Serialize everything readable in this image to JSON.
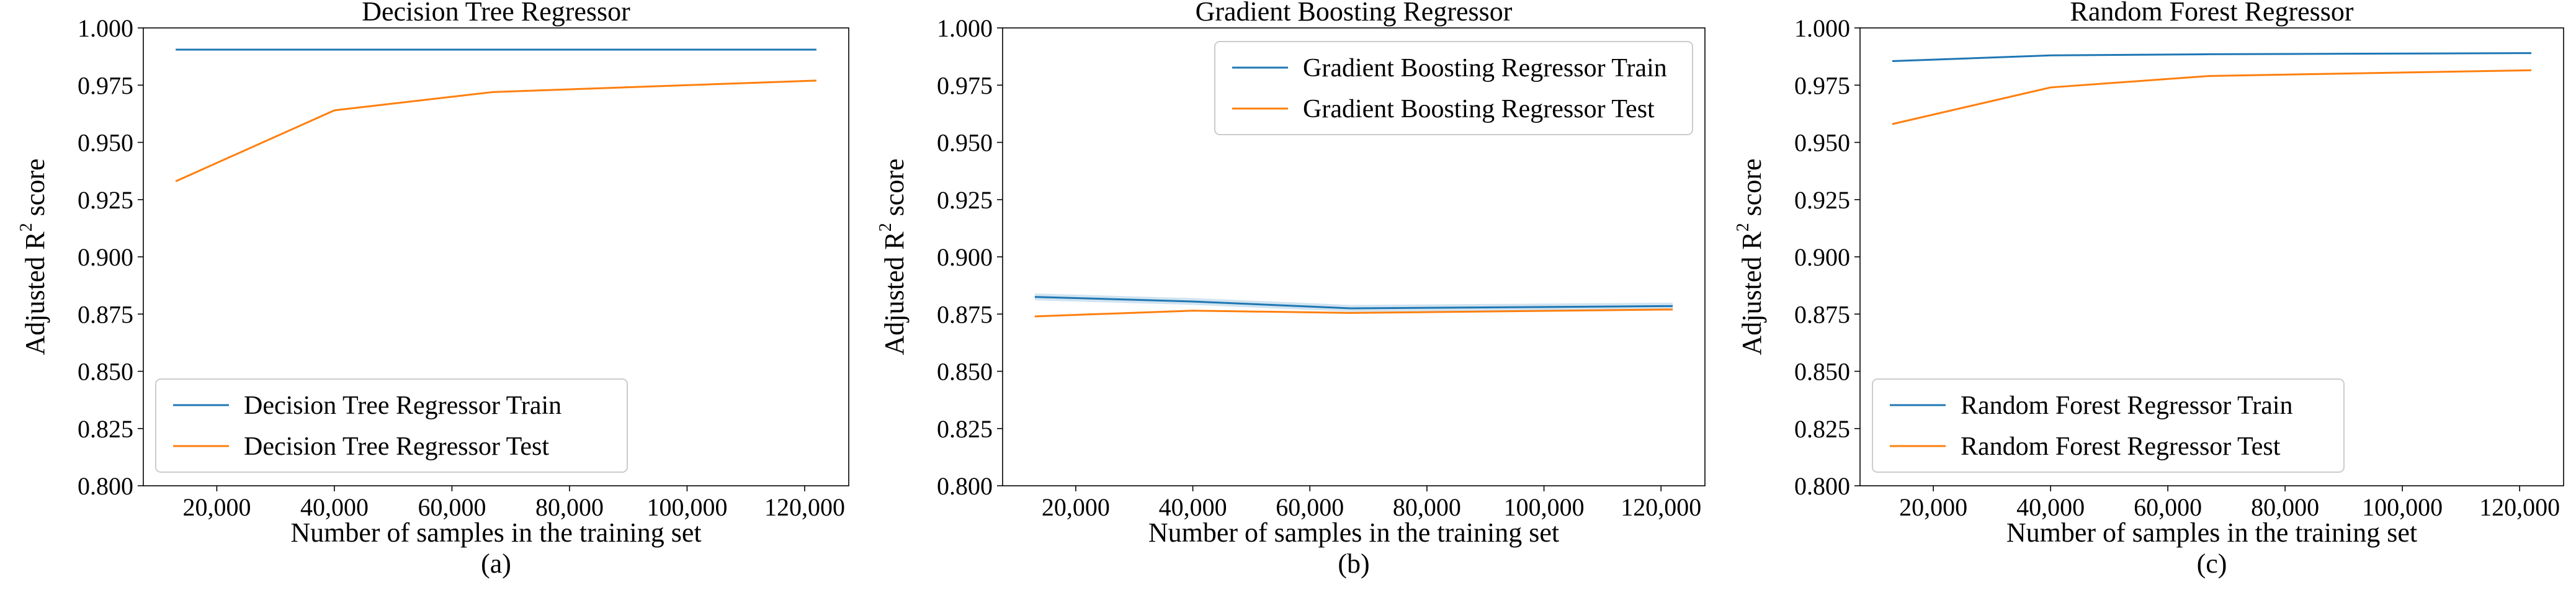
{
  "chart_data": [
    {
      "type": "line",
      "title": "Decision Tree Regressor",
      "xlabel": "Number of samples in the training set",
      "ylabel_prefix": "Adjusted  R",
      "ylabel_sup": "2",
      "ylabel_suffix": "  score",
      "caption": "(a)",
      "xlim": [
        7500,
        127500
      ],
      "ylim": [
        0.8,
        1.0
      ],
      "xticks": [
        20000,
        40000,
        60000,
        80000,
        100000,
        120000
      ],
      "xtick_labels": [
        "20,000",
        "40,000",
        "60,000",
        "80,000",
        "100,000",
        "120,000"
      ],
      "yticks": [
        0.8,
        0.825,
        0.85,
        0.875,
        0.9,
        0.925,
        0.95,
        0.975,
        1.0
      ],
      "ytick_labels": [
        "0.800",
        "0.825",
        "0.850",
        "0.875",
        "0.900",
        "0.925",
        "0.950",
        "0.975",
        "1.000"
      ],
      "legend_position": "lower-left",
      "grid": false,
      "x": [
        13000,
        40000,
        67000,
        122000
      ],
      "series": [
        {
          "name": "Decision Tree Regressor Train",
          "color": "#1f77b4",
          "values": [
            0.9905,
            0.9905,
            0.9905,
            0.9905
          ]
        },
        {
          "name": "Decision Tree Regressor Test",
          "color": "#ff7f0e",
          "values": [
            0.933,
            0.964,
            0.972,
            0.977
          ]
        }
      ]
    },
    {
      "type": "line",
      "title": "Gradient Boosting Regressor",
      "xlabel": "Number of samples in the training set",
      "ylabel_prefix": "Adjusted  R",
      "ylabel_sup": "2",
      "ylabel_suffix": "  score",
      "caption": "(b)",
      "xlim": [
        7500,
        127500
      ],
      "ylim": [
        0.8,
        1.0
      ],
      "xticks": [
        20000,
        40000,
        60000,
        80000,
        100000,
        120000
      ],
      "xtick_labels": [
        "20,000",
        "40,000",
        "60,000",
        "80,000",
        "100,000",
        "120,000"
      ],
      "yticks": [
        0.8,
        0.825,
        0.85,
        0.875,
        0.9,
        0.925,
        0.95,
        0.975,
        1.0
      ],
      "ytick_labels": [
        "0.800",
        "0.825",
        "0.850",
        "0.875",
        "0.900",
        "0.925",
        "0.950",
        "0.975",
        "1.000"
      ],
      "legend_position": "upper-right",
      "grid": false,
      "x": [
        13000,
        40000,
        67000,
        122000
      ],
      "series": [
        {
          "name": "Gradient Boosting Regressor Train",
          "color": "#1f77b4",
          "values": [
            0.8825,
            0.8805,
            0.8775,
            0.8785
          ],
          "band": 0.0015
        },
        {
          "name": "Gradient Boosting Regressor Test",
          "color": "#ff7f0e",
          "values": [
            0.874,
            0.8765,
            0.8755,
            0.877
          ]
        }
      ]
    },
    {
      "type": "line",
      "title": "Random Forest Regressor",
      "xlabel": "Number of samples in the training set",
      "ylabel_prefix": "Adjusted  R",
      "ylabel_sup": "2",
      "ylabel_suffix": "  score",
      "caption": "(c)",
      "xlim": [
        7500,
        127500
      ],
      "ylim": [
        0.8,
        1.0
      ],
      "xticks": [
        20000,
        40000,
        60000,
        80000,
        100000,
        120000
      ],
      "xtick_labels": [
        "20,000",
        "40,000",
        "60,000",
        "80,000",
        "100,000",
        "120,000"
      ],
      "yticks": [
        0.8,
        0.825,
        0.85,
        0.875,
        0.9,
        0.925,
        0.95,
        0.975,
        1.0
      ],
      "ytick_labels": [
        "0.800",
        "0.825",
        "0.850",
        "0.875",
        "0.900",
        "0.925",
        "0.950",
        "0.975",
        "1.000"
      ],
      "legend_position": "lower-left",
      "grid": false,
      "x": [
        13000,
        40000,
        67000,
        122000
      ],
      "series": [
        {
          "name": "Random Forest Regressor Train",
          "color": "#1f77b4",
          "values": [
            0.9855,
            0.988,
            0.9885,
            0.989
          ]
        },
        {
          "name": "Random Forest Regressor Test",
          "color": "#ff7f0e",
          "values": [
            0.958,
            0.974,
            0.979,
            0.9815
          ]
        }
      ]
    }
  ]
}
